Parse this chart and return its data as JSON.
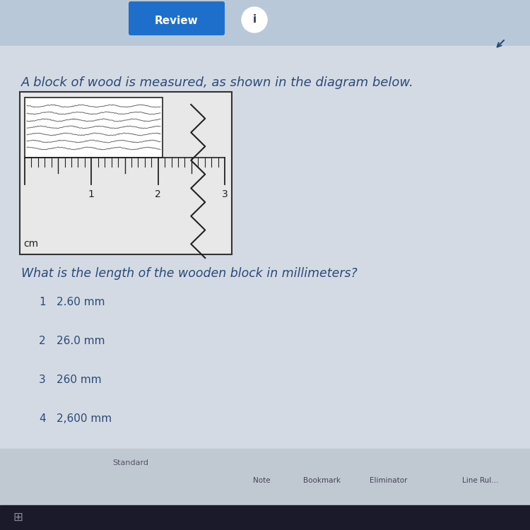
{
  "bg_color_top": "#c5cdd8",
  "bg_color_main": "#d0d7e0",
  "bg_color_content": "#cdd5de",
  "title_text": "A block of wood is measured, as shown in the diagram below.",
  "question_text": "What is the length of the wooden block in millimeters?",
  "options": [
    {
      "num": "1",
      "text": "2.60 mm"
    },
    {
      "num": "2",
      "text": "26.0 mm"
    },
    {
      "num": "3",
      "text": "260 mm"
    },
    {
      "num": "4",
      "text": "2,600 mm"
    }
  ],
  "text_color": "#2a4a7a",
  "review_btn_color": "#1e6fcc",
  "toolbar_bg": "#c8d0da",
  "toolbar_text": "#444466"
}
